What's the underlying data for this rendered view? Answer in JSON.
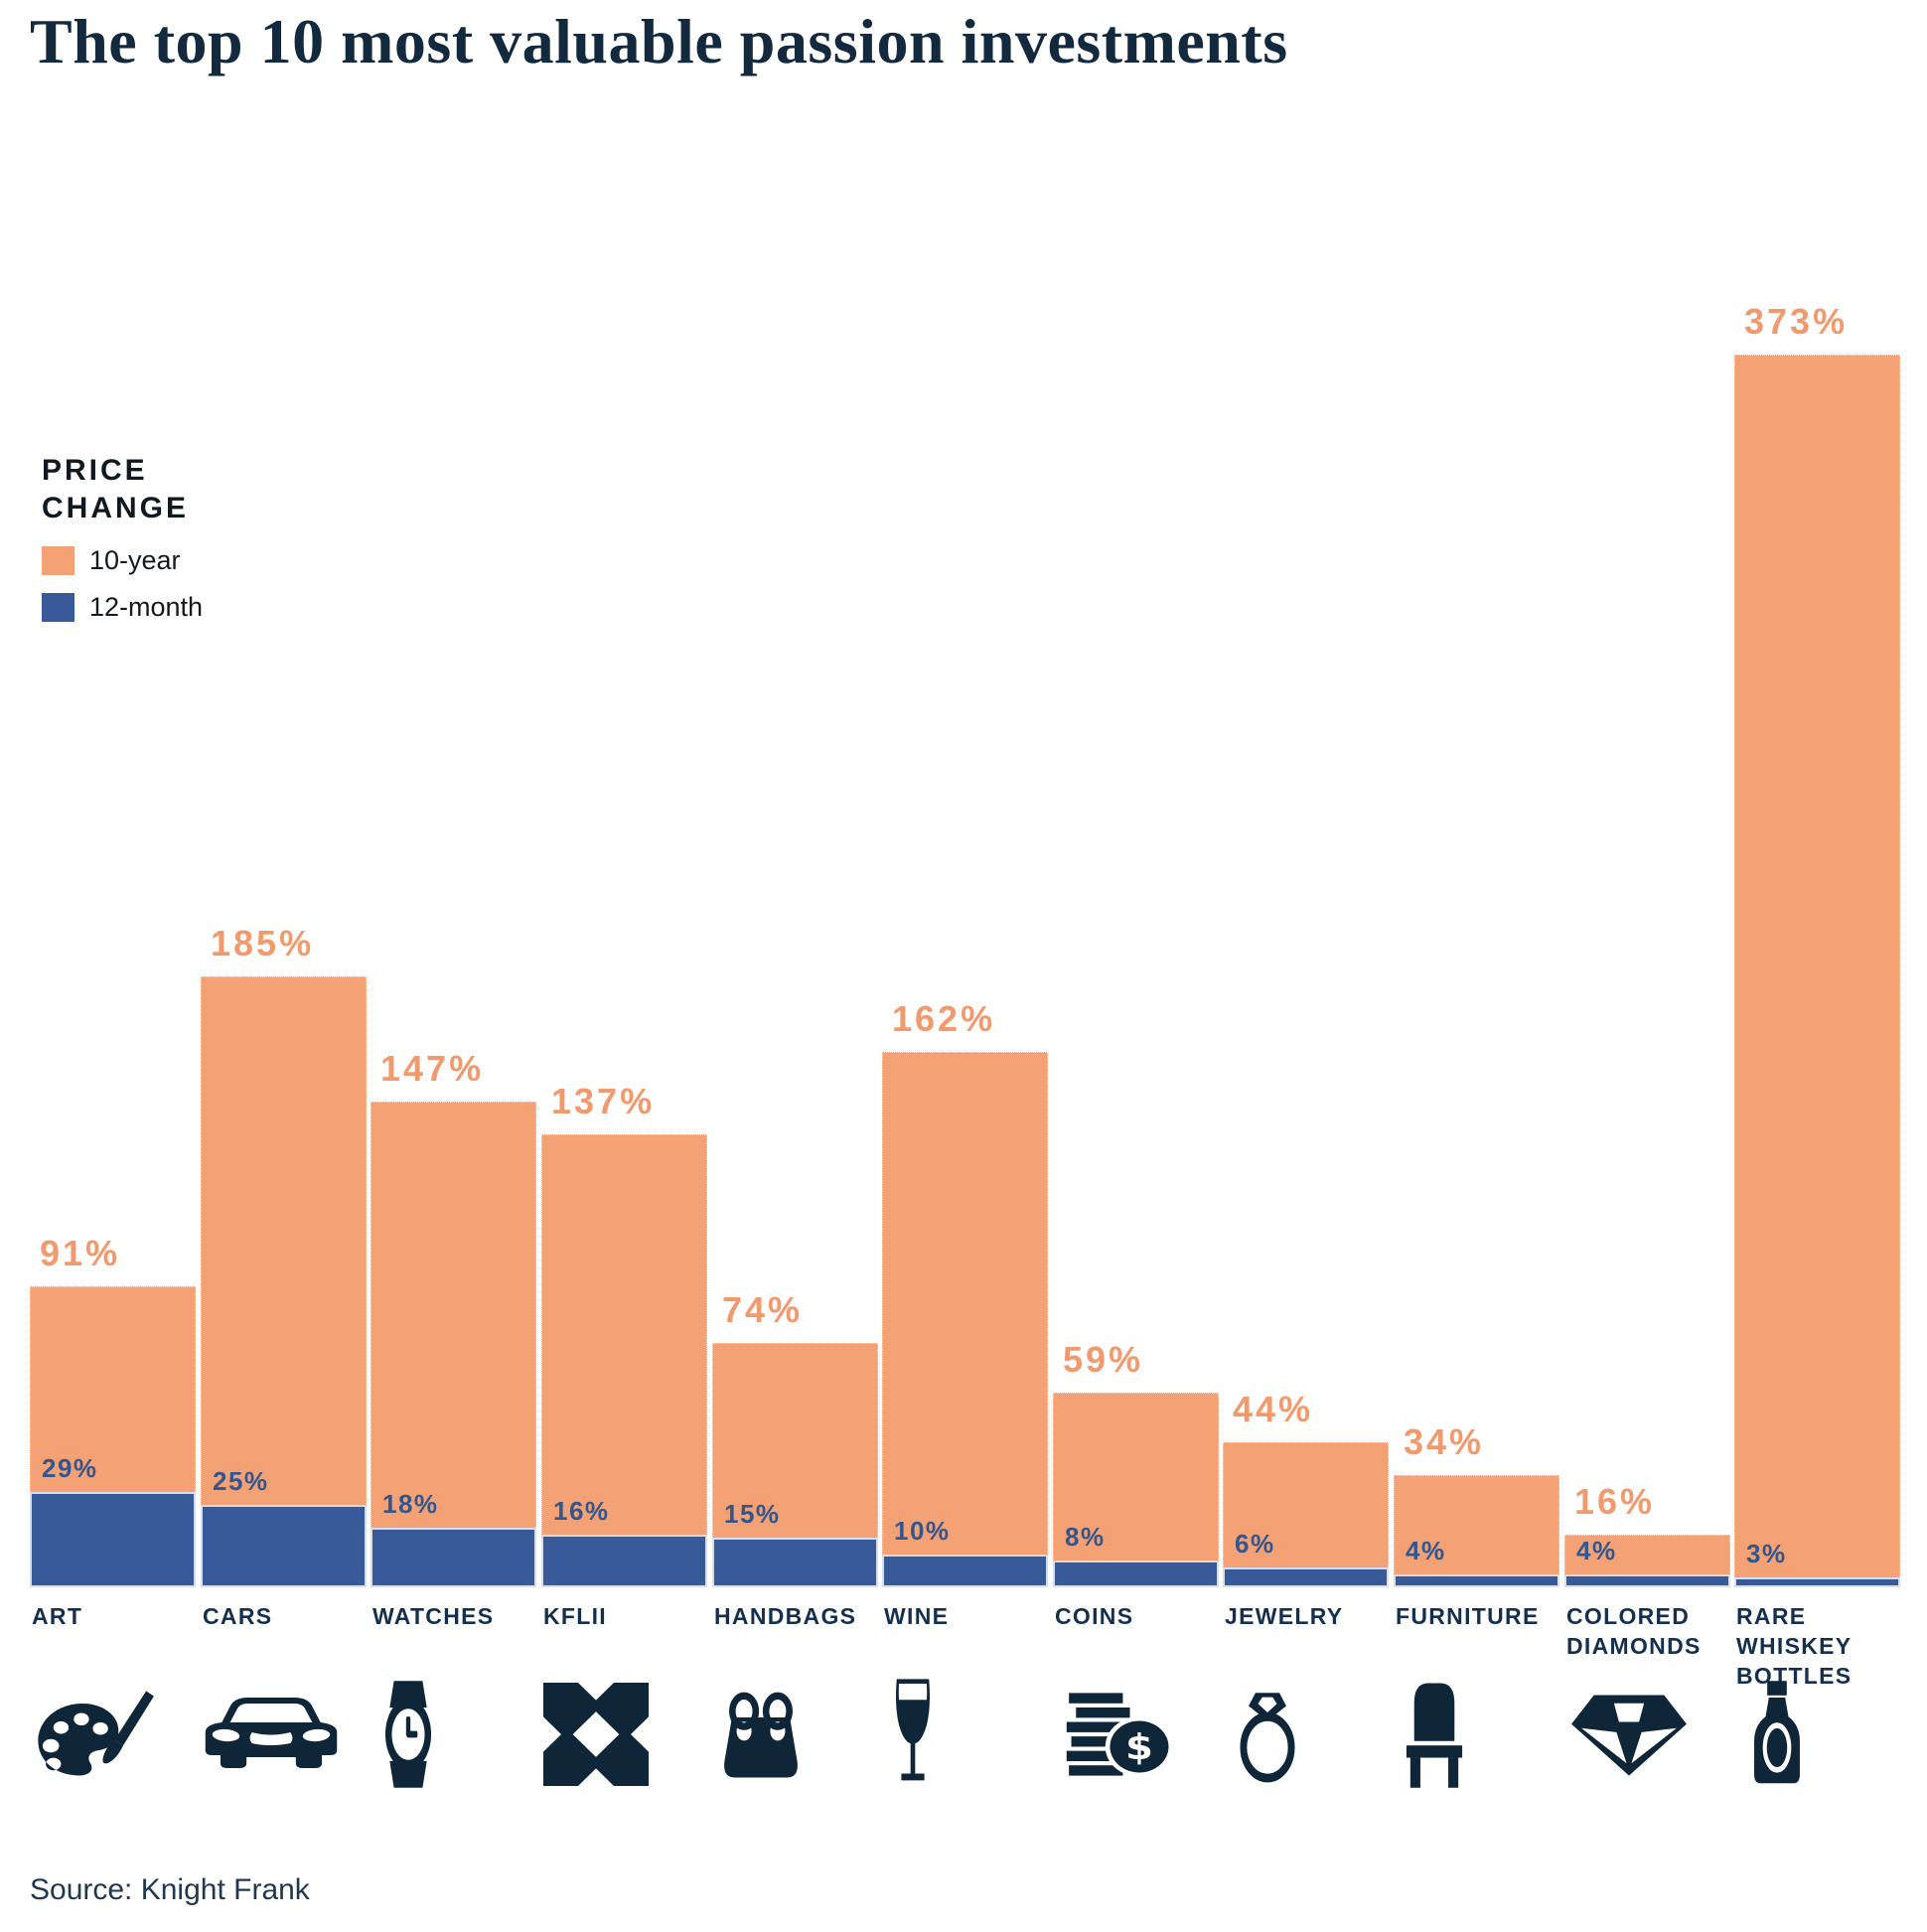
{
  "title": "The top 10 most valuable passion investments",
  "source": "Source: Knight Frank",
  "legend": {
    "title": "PRICE\nCHANGE",
    "items": [
      {
        "label": "10-year",
        "color": "#F3A175"
      },
      {
        "label": "12-month",
        "color": "#395A99"
      }
    ]
  },
  "colors": {
    "orange_bar": "#F3A175",
    "orange_label": "#F09A6D",
    "blue_bar": "#395A99",
    "blue_label": "#33568C",
    "navy_text": "#13293D",
    "icon": "#0F2638",
    "background": "#FFFFFF"
  },
  "chart_data": {
    "type": "bar",
    "title": "The top 10 most valuable passion investments",
    "categories": [
      "ART",
      "CARS",
      "WATCHES",
      "KFLII",
      "HANDBAGS",
      "WINE",
      "COINS",
      "JEWELRY",
      "FURNITURE",
      "COLORED\nDIAMONDS",
      "RARE WHISKEY\nBOTTLES"
    ],
    "series": [
      {
        "name": "10-year",
        "color": "#F3A175",
        "values": [
          91,
          185,
          147,
          137,
          74,
          162,
          59,
          44,
          34,
          16,
          373
        ]
      },
      {
        "name": "12-month",
        "color": "#395A99",
        "values": [
          29,
          25,
          18,
          16,
          15,
          10,
          8,
          6,
          4,
          4,
          3
        ]
      }
    ],
    "value_suffix": "%",
    "icons": [
      "palette-icon",
      "car-icon",
      "watch-icon",
      "kflii-icon",
      "handbag-icon",
      "wine-glass-icon",
      "coins-icon",
      "ring-icon",
      "chair-icon",
      "diamond-icon",
      "whiskey-bottle-icon"
    ],
    "xlabel": "",
    "ylabel": "",
    "ylim": [
      0,
      373
    ],
    "grid": false,
    "legend_position": "upper-left"
  }
}
